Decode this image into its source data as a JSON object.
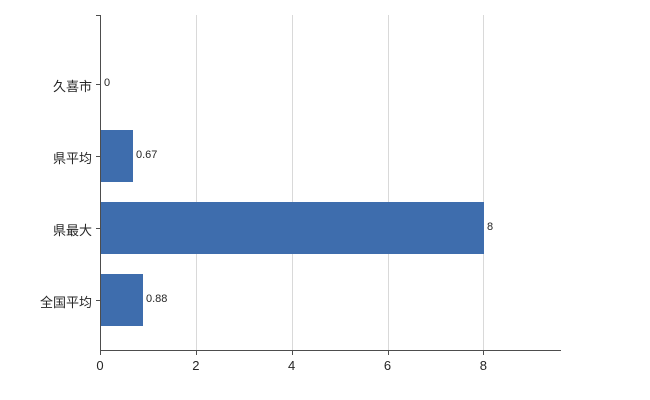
{
  "chart_data": {
    "type": "bar",
    "orientation": "horizontal",
    "title": "",
    "xlabel": "",
    "ylabel": "",
    "categories": [
      "久喜市",
      "県平均",
      "県最大",
      "全国平均"
    ],
    "values": [
      0,
      0.67,
      8,
      0.88
    ],
    "value_labels": [
      "0",
      "0.67",
      "8",
      "0.88"
    ],
    "x_tick_labels": [
      "0",
      "2",
      "4",
      "6",
      "8"
    ],
    "x_tick_values": [
      0,
      2,
      4,
      6,
      8
    ],
    "xlim": [
      0,
      9.6
    ],
    "grid": true,
    "legend": false,
    "colors": {
      "bar": "#3E6DAD",
      "grid": "#d9d9d9",
      "axis": "#4d4d4d",
      "text": "#262626",
      "background": "#ffffff"
    }
  }
}
